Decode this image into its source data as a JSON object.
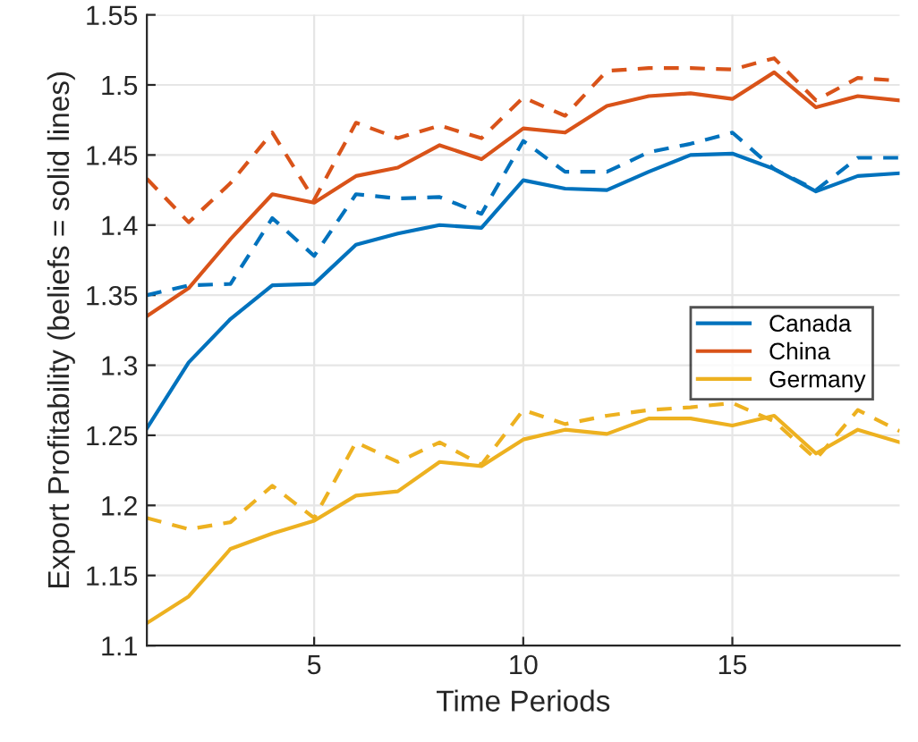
{
  "chart_data": {
    "type": "line",
    "xlabel": "Time Periods",
    "ylabel": "Export Profitability (beliefs = solid lines)",
    "x": [
      1,
      2,
      3,
      4,
      5,
      6,
      7,
      8,
      9,
      10,
      11,
      12,
      13,
      14,
      15,
      16,
      17,
      18,
      19
    ],
    "series": [
      {
        "name": "Canada",
        "color": "#0072bd",
        "line_style": "solid",
        "values": [
          1.255,
          1.302,
          1.333,
          1.357,
          1.358,
          1.386,
          1.394,
          1.4,
          1.398,
          1.432,
          1.426,
          1.425,
          1.438,
          1.45,
          1.451,
          1.44,
          1.424,
          1.435,
          1.437
        ]
      },
      {
        "name": "China",
        "color": "#d95319",
        "line_style": "solid",
        "values": [
          1.335,
          1.355,
          1.39,
          1.422,
          1.416,
          1.435,
          1.441,
          1.457,
          1.447,
          1.469,
          1.466,
          1.485,
          1.492,
          1.494,
          1.49,
          1.509,
          1.484,
          1.492,
          1.489
        ]
      },
      {
        "name": "Germany",
        "color": "#edb120",
        "line_style": "solid",
        "values": [
          1.116,
          1.135,
          1.169,
          1.18,
          1.189,
          1.207,
          1.21,
          1.231,
          1.228,
          1.247,
          1.254,
          1.251,
          1.262,
          1.262,
          1.257,
          1.264,
          1.237,
          1.254,
          1.245
        ]
      },
      {
        "color": "#0072bd",
        "line_style": "dashed",
        "values": [
          1.35,
          1.357,
          1.358,
          1.405,
          1.378,
          1.422,
          1.419,
          1.42,
          1.408,
          1.46,
          1.438,
          1.438,
          1.452,
          1.458,
          1.466,
          1.44,
          1.425,
          1.448,
          1.448
        ]
      },
      {
        "color": "#d95319",
        "line_style": "dashed",
        "values": [
          1.433,
          1.402,
          1.43,
          1.466,
          1.418,
          1.473,
          1.462,
          1.471,
          1.462,
          1.491,
          1.478,
          1.51,
          1.512,
          1.512,
          1.511,
          1.519,
          1.489,
          1.505,
          1.503
        ]
      },
      {
        "color": "#edb120",
        "line_style": "dashed",
        "values": [
          1.191,
          1.183,
          1.188,
          1.214,
          1.191,
          1.245,
          1.231,
          1.245,
          1.229,
          1.268,
          1.258,
          1.264,
          1.268,
          1.27,
          1.273,
          1.26,
          1.233,
          1.268,
          1.253
        ]
      }
    ],
    "xlim": [
      1,
      19
    ],
    "xticks": [
      5,
      10,
      15
    ],
    "ylim": [
      1.1,
      1.55
    ],
    "yticks": [
      1.1,
      1.15,
      1.2,
      1.25,
      1.3,
      1.35,
      1.4,
      1.45,
      1.5,
      1.55
    ],
    "grid": true,
    "legend": "right"
  }
}
